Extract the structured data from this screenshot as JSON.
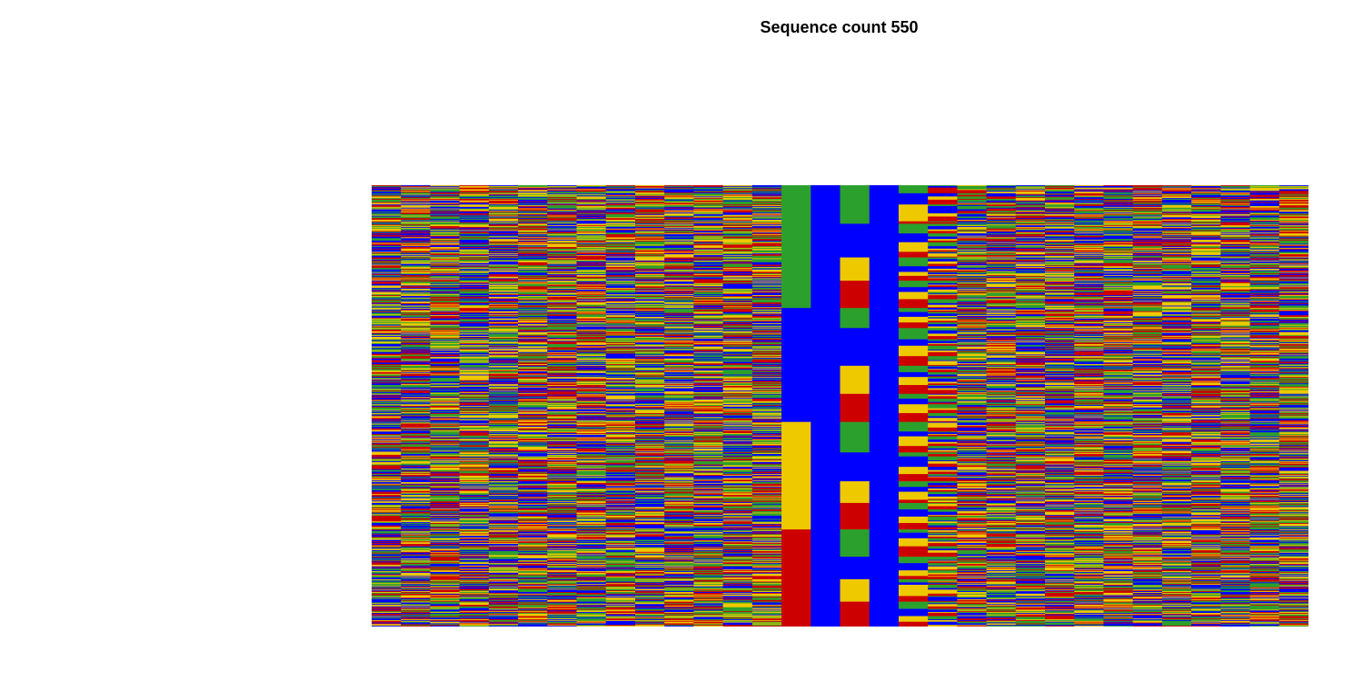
{
  "chart_data": {
    "type": "heatmap",
    "title": "Sequence count 550",
    "sequence_count": 550,
    "num_positions": 32,
    "palette": {
      "A": "#2ca02c",
      "C": "#0000ff",
      "G": "#eec900",
      "T": "#cd0000"
    },
    "fixed_positions": [
      {
        "position": 16,
        "base": "C"
      },
      {
        "position": 18,
        "base": "C"
      }
    ],
    "sorted_positions": [
      15,
      17,
      19,
      20,
      21,
      22
    ],
    "grid": false,
    "legend": "none",
    "axes": "none"
  }
}
